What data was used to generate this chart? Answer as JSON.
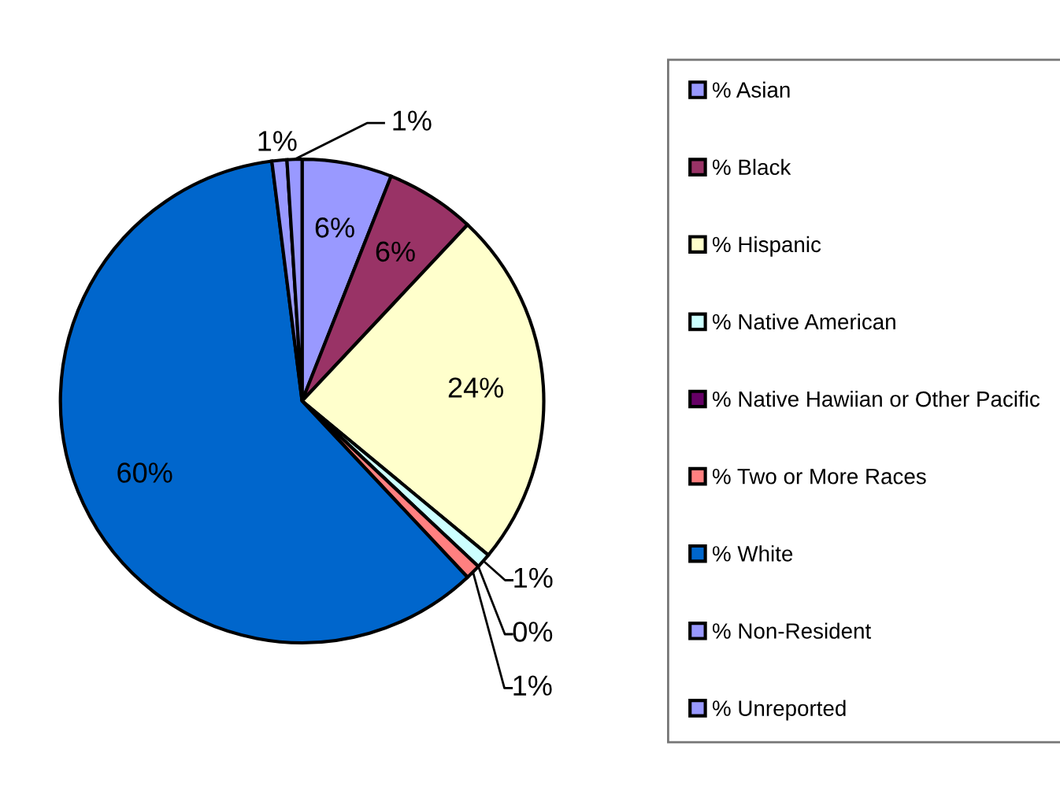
{
  "chart_data": {
    "type": "pie",
    "categories": [
      "% Asian",
      "% Black",
      "% Hispanic",
      "% Native American",
      "% Native Hawiian or Other Pacific",
      "% Two or More Races",
      "% White",
      "% Non-Resident",
      "% Unreported"
    ],
    "values": [
      6,
      6,
      24,
      1,
      0,
      1,
      60,
      1,
      1
    ],
    "colors": [
      "#9999ff",
      "#993366",
      "#ffffcc",
      "#ccffff",
      "#660066",
      "#ff8080",
      "#0066cc",
      "#9999ff",
      "#9999ff"
    ],
    "value_labels": [
      "6%",
      "6%",
      "24%",
      "1%",
      "0%",
      "1%",
      "60%",
      "1%",
      "1%"
    ],
    "legend": "right"
  }
}
